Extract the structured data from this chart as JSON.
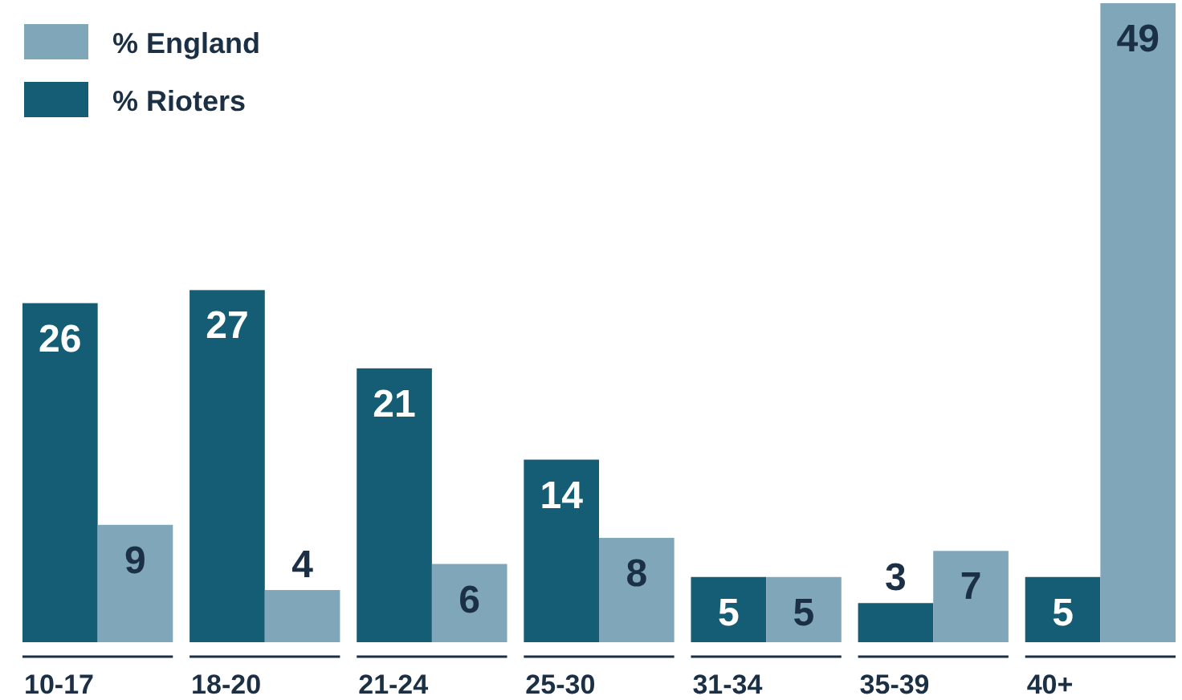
{
  "chart_data": {
    "type": "bar",
    "categories": [
      "10-17",
      "18-20",
      "21-24",
      "25-30",
      "31-34",
      "35-39",
      "40+"
    ],
    "series": [
      {
        "name": "% Rioters",
        "color": "#155d74",
        "values": [
          26,
          27,
          21,
          14,
          5,
          3,
          5
        ]
      },
      {
        "name": "% England",
        "color": "#7fa7b9",
        "values": [
          9,
          4,
          6,
          8,
          5,
          7,
          49
        ]
      }
    ],
    "data_labels": true,
    "legend": "top left",
    "grid": false
  }
}
